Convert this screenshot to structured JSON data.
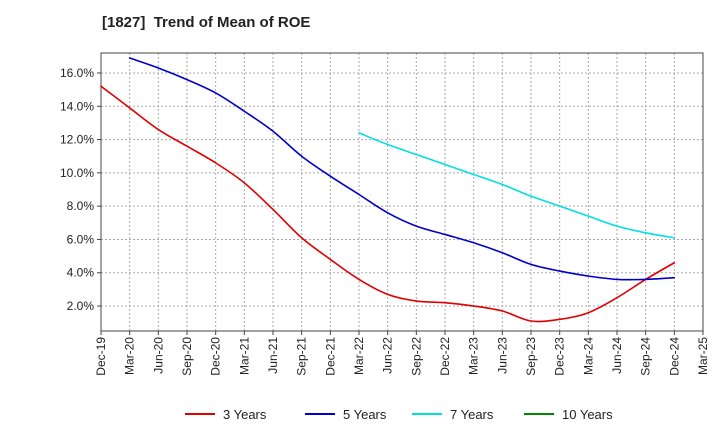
{
  "chart_data": {
    "type": "line",
    "title": "[1827]  Trend of Mean of ROE",
    "xlabel": "",
    "ylabel": "",
    "x": [
      "Dec-19",
      "Mar-20",
      "Jun-20",
      "Sep-20",
      "Dec-20",
      "Mar-21",
      "Jun-21",
      "Sep-21",
      "Dec-21",
      "Mar-22",
      "Jun-22",
      "Sep-22",
      "Dec-22",
      "Mar-23",
      "Jun-23",
      "Sep-23",
      "Dec-23",
      "Mar-24",
      "Jun-24",
      "Sep-24",
      "Dec-24",
      "Mar-25"
    ],
    "ylim": [
      0.5,
      17.2
    ],
    "yticks": [
      2.0,
      4.0,
      6.0,
      8.0,
      10.0,
      12.0,
      14.0,
      16.0
    ],
    "ytick_labels": [
      "2.0%",
      "4.0%",
      "6.0%",
      "8.0%",
      "10.0%",
      "12.0%",
      "14.0%",
      "16.0%"
    ],
    "grid": true,
    "legend_position": "bottom",
    "series": [
      {
        "name": "3 Years",
        "color": "#e00000",
        "values": [
          15.2,
          13.9,
          12.6,
          11.6,
          10.6,
          9.4,
          7.8,
          6.1,
          4.8,
          3.6,
          2.7,
          2.3,
          2.2,
          2.0,
          1.7,
          1.1,
          1.2,
          1.6,
          2.5,
          3.6,
          4.6,
          null
        ]
      },
      {
        "name": "5 Years",
        "color": "#0000cc",
        "values": [
          null,
          16.9,
          16.3,
          15.6,
          14.8,
          13.7,
          12.5,
          11.0,
          9.8,
          8.7,
          7.6,
          6.8,
          6.3,
          5.8,
          5.2,
          4.5,
          4.1,
          3.8,
          3.6,
          3.6,
          3.7,
          null
        ]
      },
      {
        "name": "7 Years",
        "color": "#00e0e0",
        "values": [
          null,
          null,
          null,
          null,
          null,
          null,
          null,
          null,
          null,
          12.4,
          11.7,
          11.1,
          10.5,
          9.9,
          9.3,
          8.6,
          8.0,
          7.4,
          6.8,
          6.4,
          6.1,
          null
        ]
      },
      {
        "name": "10 Years",
        "color": "#008800",
        "values": [
          null,
          null,
          null,
          null,
          null,
          null,
          null,
          null,
          null,
          null,
          null,
          null,
          null,
          null,
          null,
          null,
          null,
          null,
          null,
          null,
          null,
          null
        ]
      }
    ]
  }
}
